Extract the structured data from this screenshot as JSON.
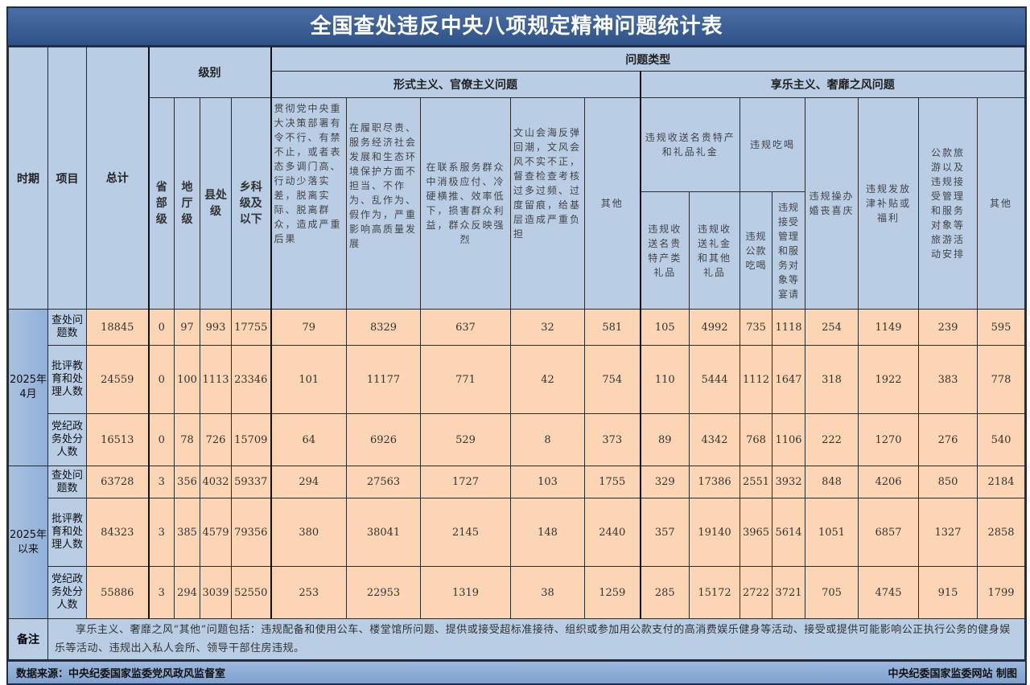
{
  "title": "全国查处违反中央八项规定精神问题统计表",
  "headers": {
    "period": "时期",
    "item": "项目",
    "total": "总计",
    "level_group": "级别",
    "levels": [
      "省部级",
      "地厅级",
      "县处级",
      "乡科级及以下"
    ],
    "problem_type": "问题类型",
    "formalism_group": "形式主义、官僚主义问题",
    "formalism": [
      "贯彻党中央重大决策部署有令不行、有禁不止，或者表态多调门高、行动少落实差，脱离实际、脱离群众，造成严重后果",
      "在履职尽责、服务经济社会发展和生态环境保护方面不担当、不作为、乱作为、假作为，严重影响高质量发展",
      "在联系服务群众中消极应付、冷硬横推、效率低下，损害群众利益，群众反映强烈",
      "文山会海反弹回潮，文风会风不实不正，督查检查考核过多过频、过度留痕，给基层造成严重负担",
      "其他"
    ],
    "hedonism_group": "享乐主义、奢靡之风问题",
    "gifts_group": "违规收送名贵特产和礼品礼金",
    "gifts": [
      "违规收送名贵特产类礼品",
      "违规收送礼金和其他礼品"
    ],
    "dining_group": "违规吃喝",
    "dining": [
      "违规公款吃喝",
      "违规接受管理和服务对象等宴请"
    ],
    "hedonism_other": [
      "违规操办婚丧喜庆",
      "违规发放津补贴或福利",
      "公款旅游以及违规接受管理和服务对象等旅游活动安排",
      "其他"
    ]
  },
  "groups": [
    {
      "period": "2025年4月",
      "rows": [
        {
          "item": "查处问题数",
          "values": [
            18845,
            0,
            97,
            993,
            17755,
            79,
            8329,
            637,
            32,
            581,
            105,
            4992,
            735,
            1118,
            254,
            1149,
            239,
            595
          ]
        },
        {
          "item": "批评教育和处理人数",
          "values": [
            24559,
            0,
            100,
            1113,
            23346,
            101,
            11177,
            771,
            42,
            754,
            110,
            5444,
            1112,
            1647,
            318,
            1922,
            383,
            778
          ]
        },
        {
          "item": "党纪政务处分人数",
          "values": [
            16513,
            0,
            78,
            726,
            15709,
            64,
            6926,
            529,
            8,
            373,
            89,
            4342,
            768,
            1106,
            222,
            1270,
            276,
            540
          ]
        }
      ]
    },
    {
      "period": "2025年以来",
      "rows": [
        {
          "item": "查处问题数",
          "values": [
            63728,
            3,
            356,
            4032,
            59337,
            294,
            27563,
            1727,
            103,
            1755,
            329,
            17386,
            2551,
            3932,
            848,
            4206,
            850,
            2184
          ]
        },
        {
          "item": "批评教育和处理人数",
          "values": [
            84323,
            3,
            385,
            4579,
            79356,
            380,
            38041,
            2145,
            148,
            2440,
            357,
            19140,
            3965,
            5614,
            1051,
            6857,
            1327,
            2858
          ]
        },
        {
          "item": "党纪政务处分人数",
          "values": [
            55886,
            3,
            294,
            3039,
            52550,
            253,
            22953,
            1319,
            38,
            1259,
            285,
            15172,
            2722,
            3721,
            705,
            4745,
            915,
            1799
          ]
        }
      ]
    }
  ],
  "note": {
    "label": "备注",
    "text": "享乐主义、奢靡之风“其他”问题包括：违规配备和使用公车、楼堂馆所问题、提供或接受超标准接待、组织或参加用公款支付的高消费娱乐健身等活动、接受或提供可能影响公正执行公务的健身娱乐等活动、违规出入私人会所、领导干部住房违规。"
  },
  "footer": {
    "source": "数据来源：中央纪委国家监委党风政风监督室",
    "credit": "中央纪委国家监委网站 制图"
  },
  "colors": {
    "title_bg": "#2f5389",
    "header_bg": "#b9cde5",
    "data_bg": "#fcd5b4"
  }
}
